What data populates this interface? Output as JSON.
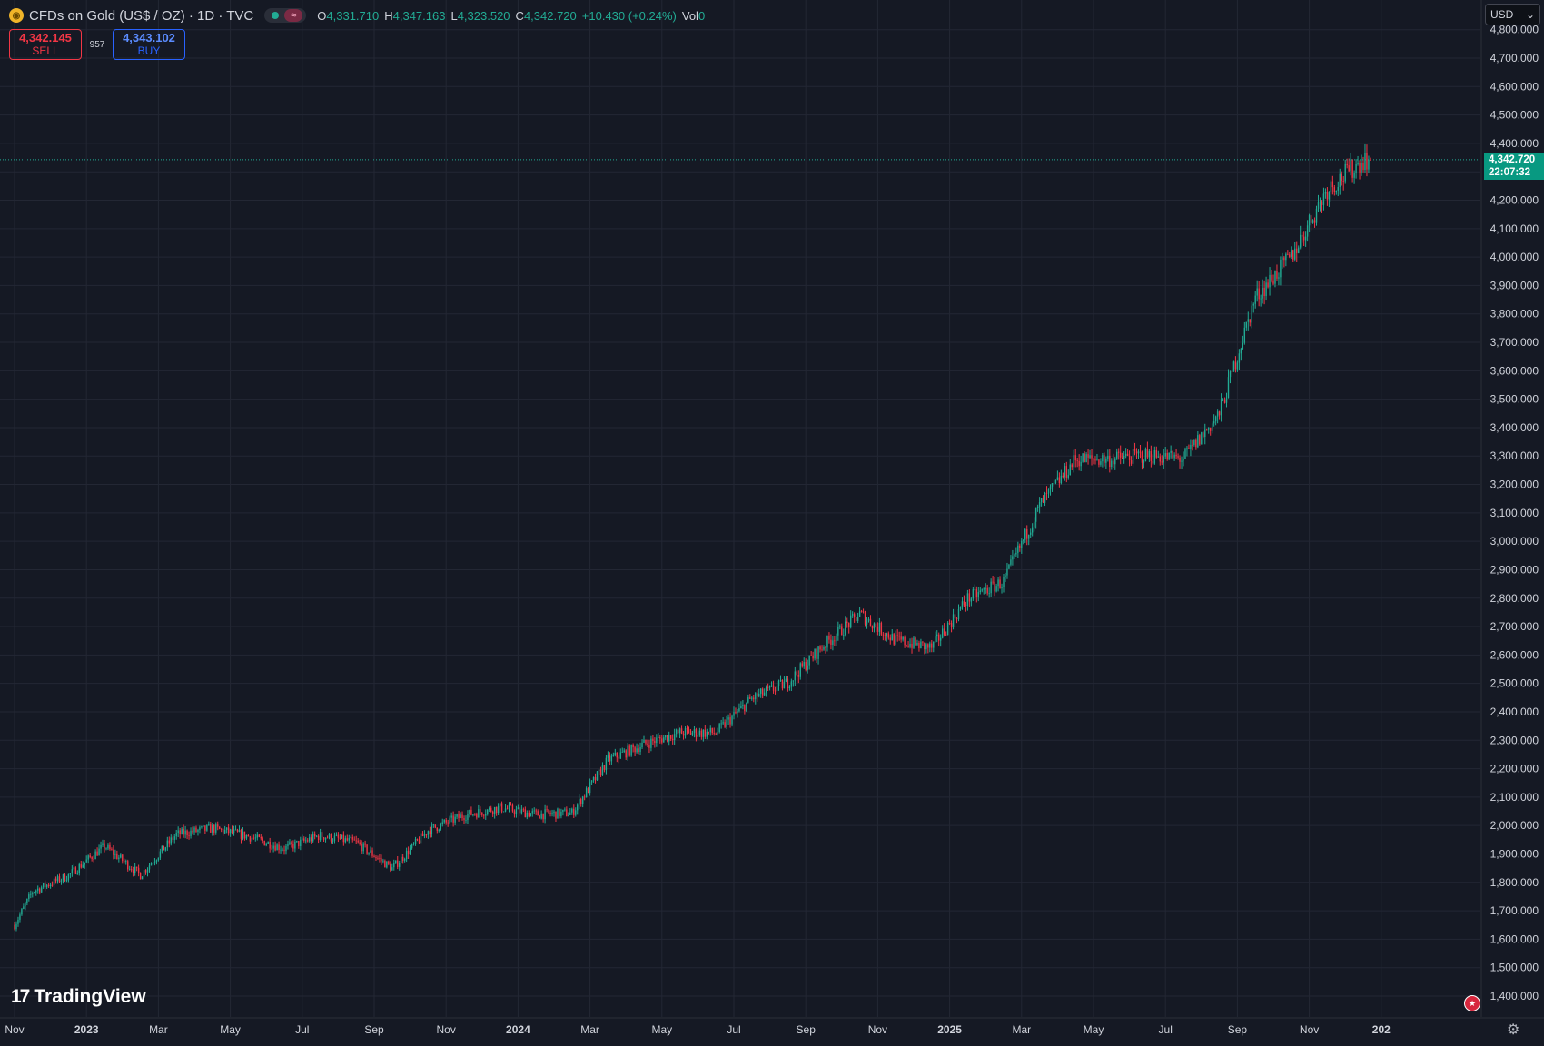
{
  "header": {
    "symbol_icon": "gold-coin-icon",
    "symbol_title": "CFDs on Gold (US$ / OZ) · 1D · TVC",
    "market_status_icon": "market-open-icon",
    "ohlc": {
      "o_label": "O",
      "o_value": "4,331.710",
      "h_label": "H",
      "h_value": "4,347.163",
      "l_label": "L",
      "l_value": "4,323.520",
      "c_label": "C",
      "c_value": "4,342.720",
      "change": "+10.430 (+0.24%)",
      "vol_label": "Vol",
      "vol_value": "0"
    }
  },
  "trade": {
    "sell_price": "4,342.145",
    "sell_label": "SELL",
    "spread": "957",
    "buy_price": "4,343.102",
    "buy_label": "BUY"
  },
  "currency_select": "USD",
  "last_price": {
    "value": "4,342.720",
    "countdown": "22:07:32"
  },
  "branding": "TradingView",
  "colors": {
    "up": "#22ab94",
    "down": "#f23645",
    "background": "#151924",
    "grid": "#232734"
  },
  "chart_data": {
    "type": "candlestick",
    "timeframe": "1D",
    "y_tick_labels": [
      "1,400.000",
      "1,500.000",
      "1,600.000",
      "1,700.000",
      "1,800.000",
      "1,900.000",
      "2,000.000",
      "2,100.000",
      "2,200.000",
      "2,300.000",
      "2,400.000",
      "2,500.000",
      "2,600.000",
      "2,700.000",
      "2,800.000",
      "2,900.000",
      "3,000.000",
      "3,100.000",
      "3,200.000",
      "3,300.000",
      "3,400.000",
      "3,500.000",
      "3,600.000",
      "3,700.000",
      "3,800.000",
      "3,900.000",
      "4,000.000",
      "4,100.000",
      "4,200.000",
      "4,300.000",
      "4,400.000",
      "4,500.000",
      "4,600.000",
      "4,700.000",
      "4,800.000"
    ],
    "ylim": [
      1370,
      4840
    ],
    "x_tick_labels": [
      "Nov",
      "2023",
      "Mar",
      "May",
      "Jul",
      "Sep",
      "Nov",
      "2024",
      "Mar",
      "May",
      "Jul",
      "Sep",
      "Nov",
      "2025",
      "Mar",
      "May",
      "Jul",
      "Sep",
      "Nov",
      "202"
    ],
    "x_tick_values": [
      "2022-11",
      "2023-01",
      "2023-03",
      "2023-05",
      "2023-07",
      "2023-09",
      "2023-11",
      "2024-01",
      "2024-03",
      "2024-05",
      "2024-07",
      "2024-09",
      "2024-11",
      "2025-01",
      "2025-03",
      "2025-05",
      "2025-07",
      "2025-09",
      "2025-11",
      "2026-01"
    ],
    "closes_monthly": [
      {
        "date": "2022-11",
        "close": 1768
      },
      {
        "date": "2022-12",
        "close": 1824
      },
      {
        "date": "2023-01",
        "close": 1928
      },
      {
        "date": "2023-02",
        "close": 1826
      },
      {
        "date": "2023-03",
        "close": 1969
      },
      {
        "date": "2023-04",
        "close": 1990
      },
      {
        "date": "2023-05",
        "close": 1962
      },
      {
        "date": "2023-06",
        "close": 1919
      },
      {
        "date": "2023-07",
        "close": 1965
      },
      {
        "date": "2023-08",
        "close": 1940
      },
      {
        "date": "2023-09",
        "close": 1849
      },
      {
        "date": "2023-10",
        "close": 1983
      },
      {
        "date": "2023-11",
        "close": 2036
      },
      {
        "date": "2023-12",
        "close": 2063
      },
      {
        "date": "2024-01",
        "close": 2039
      },
      {
        "date": "2024-02",
        "close": 2044
      },
      {
        "date": "2024-03",
        "close": 2230
      },
      {
        "date": "2024-04",
        "close": 2286
      },
      {
        "date": "2024-05",
        "close": 2327
      },
      {
        "date": "2024-06",
        "close": 2326
      },
      {
        "date": "2024-07",
        "close": 2447
      },
      {
        "date": "2024-08",
        "close": 2503
      },
      {
        "date": "2024-09",
        "close": 2634
      },
      {
        "date": "2024-10",
        "close": 2744
      },
      {
        "date": "2024-11",
        "close": 2651
      },
      {
        "date": "2024-12",
        "close": 2625
      },
      {
        "date": "2025-01",
        "close": 2798
      },
      {
        "date": "2025-02",
        "close": 2858
      },
      {
        "date": "2025-03",
        "close": 3124
      },
      {
        "date": "2025-04",
        "close": 3288
      },
      {
        "date": "2025-05",
        "close": 3289
      },
      {
        "date": "2025-06",
        "close": 3303
      },
      {
        "date": "2025-07",
        "close": 3290
      },
      {
        "date": "2025-08",
        "close": 3448
      },
      {
        "date": "2025-09",
        "close": 3858
      },
      {
        "date": "2025-10",
        "close": 4002
      },
      {
        "date": "2025-11",
        "close": 4239
      },
      {
        "date": "2025-12",
        "close": 4342.72
      }
    ],
    "last_close": 4342.72,
    "grid": true
  }
}
